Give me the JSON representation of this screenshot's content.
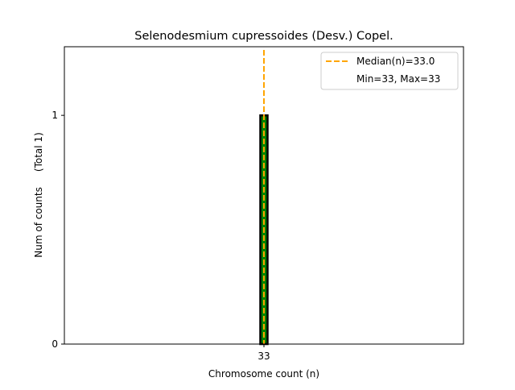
{
  "chart_data": {
    "type": "bar",
    "title": "Selenodesmium cupressoides (Desv.) Copel.",
    "xlabel": "Chromosome count (n)",
    "ylabel": "Num of counts     (Total 1)",
    "categories": [
      33
    ],
    "values": [
      1
    ],
    "xticks": [
      "33"
    ],
    "yticks": [
      "0",
      "1"
    ],
    "xlim": [
      5.5,
      60.5
    ],
    "ylim": [
      0,
      1.3
    ],
    "bar_color": "#008000",
    "bar_edge_color": "#000000",
    "median_line": {
      "x": 33.0,
      "color": "#ffa500",
      "label": "Median(n)=33.0"
    },
    "legend": {
      "position": "top-right",
      "entries": [
        "Median(n)=33.0",
        "Min=33, Max=33"
      ]
    },
    "grid": false
  }
}
